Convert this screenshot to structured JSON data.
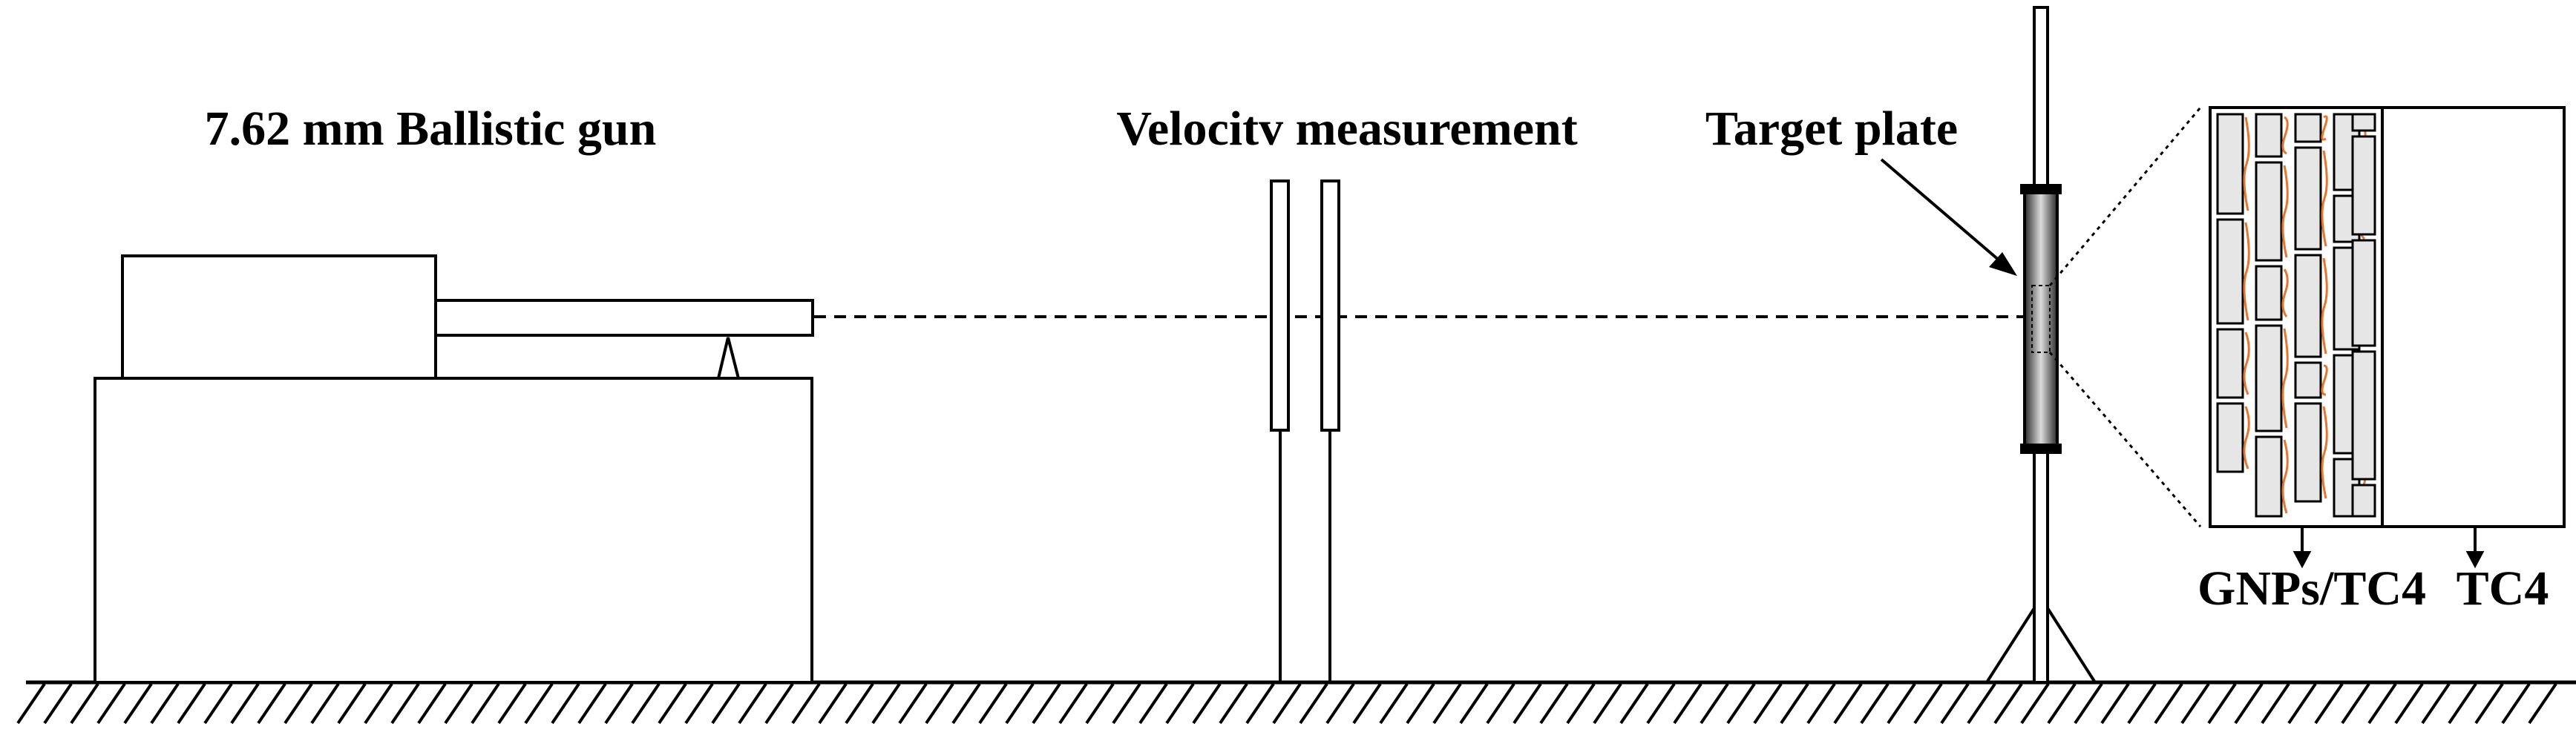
{
  "labels": {
    "gun": "7.62 mm Ballistic gun",
    "velocity": "Velocitv measurement",
    "target": "Target plate",
    "gnps": "GNPs/TC4",
    "tc4": "TC4"
  },
  "colors": {
    "line": "#000000",
    "fiber": "#e8752a",
    "platelet": "#e6e6e6"
  }
}
